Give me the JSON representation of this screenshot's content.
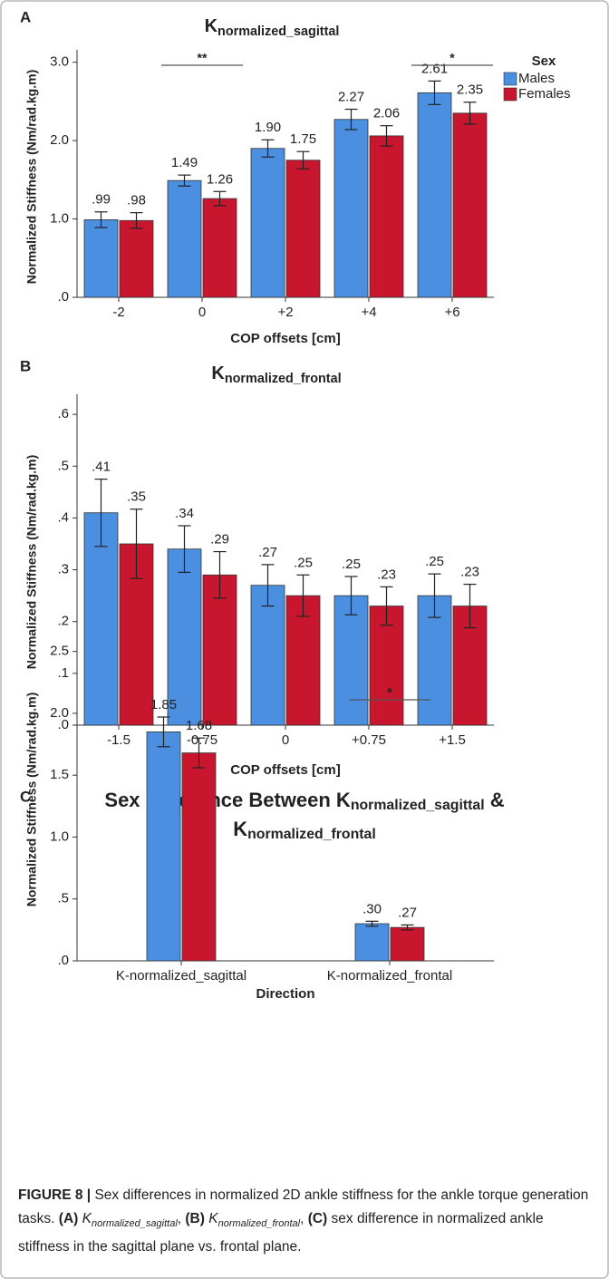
{
  "chart_data": [
    {
      "type": "bar",
      "panel": "A",
      "title": [
        [
          "K",
          "normalized_sagittal"
        ]
      ],
      "ylabel": "Normalized Stiffness (Nm/rad.kg.m)",
      "xlabel": "COP offsets [cm]",
      "categories": [
        "-2",
        "0",
        "+2",
        "+4",
        "+6"
      ],
      "series": [
        {
          "name": "Males",
          "color": "#4a8fe0",
          "values": [
            0.99,
            1.49,
            1.9,
            2.27,
            2.61
          ],
          "value_labels": [
            ".99",
            "1.49",
            "1.90",
            "2.27",
            "2.61"
          ],
          "errors": [
            0.1,
            0.07,
            0.11,
            0.13,
            0.15
          ]
        },
        {
          "name": "Females",
          "color": "#c8162e",
          "values": [
            0.98,
            1.26,
            1.75,
            2.06,
            2.35
          ],
          "value_labels": [
            ".98",
            "1.26",
            "1.75",
            "2.06",
            "2.35"
          ],
          "errors": [
            0.1,
            0.09,
            0.11,
            0.13,
            0.14
          ]
        }
      ],
      "ylim": [
        0,
        3.1
      ],
      "yticks": [
        {
          "value": 0,
          "label": ".0"
        },
        {
          "value": 1,
          "label": "1.0"
        },
        {
          "value": 2,
          "label": "2.0"
        },
        {
          "value": 3,
          "label": "3.0"
        }
      ],
      "legend_title": "Sex",
      "annotations": [
        {
          "text": "**",
          "category": "0"
        },
        {
          "text": "*",
          "category": "+6"
        }
      ]
    },
    {
      "type": "bar",
      "panel": "B",
      "title": [
        [
          "K",
          "normalized_frontal"
        ]
      ],
      "ylabel": "Normalized Stiffness (Nm/rad.kg.m)",
      "xlabel": "COP offsets [cm]",
      "categories": [
        "-1.5",
        "-0.75",
        "0",
        "+0.75",
        "+1.5"
      ],
      "series": [
        {
          "name": "Males",
          "color": "#4a8fe0",
          "values": [
            0.41,
            0.34,
            0.27,
            0.25,
            0.25
          ],
          "value_labels": [
            ".41",
            ".34",
            ".27",
            ".25",
            ".25"
          ],
          "errors": [
            0.065,
            0.045,
            0.04,
            0.037,
            0.042
          ]
        },
        {
          "name": "Females",
          "color": "#c8162e",
          "values": [
            0.35,
            0.29,
            0.25,
            0.23,
            0.23
          ],
          "value_labels": [
            ".35",
            ".29",
            ".25",
            ".23",
            ".23"
          ],
          "errors": [
            0.067,
            0.045,
            0.04,
            0.037,
            0.042
          ]
        }
      ],
      "ylim": [
        0,
        0.63
      ],
      "yticks": [
        {
          "value": 0,
          "label": ".0"
        },
        {
          "value": 0.1,
          "label": ".1"
        },
        {
          "value": 0.2,
          "label": ".2"
        },
        {
          "value": 0.3,
          "label": ".3"
        },
        {
          "value": 0.4,
          "label": ".4"
        },
        {
          "value": 0.5,
          "label": ".5"
        },
        {
          "value": 0.6,
          "label": ".6"
        }
      ]
    },
    {
      "type": "bar",
      "panel": "C",
      "title": [
        [
          "Sex Difference Between K",
          "normalized_sagittal",
          " &"
        ],
        [
          "K",
          "normalized_frontal"
        ]
      ],
      "ylabel": "Normalized Stiffness (Nm/rad.kg.m)",
      "xlabel": "Direction",
      "categories": [
        "K-normalized_sagittal",
        "K-normalized_frontal"
      ],
      "series": [
        {
          "name": "Males",
          "color": "#4a8fe0",
          "values": [
            1.85,
            0.3
          ],
          "value_labels": [
            "1.85",
            ".30"
          ],
          "errors": [
            0.12,
            0.02
          ]
        },
        {
          "name": "Females",
          "color": "#c8162e",
          "values": [
            1.68,
            0.27
          ],
          "value_labels": [
            "1.68",
            ".27"
          ],
          "errors": [
            0.12,
            0.02
          ]
        }
      ],
      "ylim": [
        0,
        2.6
      ],
      "yticks": [
        {
          "value": 0,
          "label": ".0"
        },
        {
          "value": 0.5,
          "label": ".5"
        },
        {
          "value": 1,
          "label": "1.0"
        },
        {
          "value": 1.5,
          "label": "1.5"
        },
        {
          "value": 2,
          "label": "2.0"
        },
        {
          "value": 2.5,
          "label": "2.5"
        }
      ],
      "annotations": [
        {
          "text": "*",
          "category": "K-normalized_frontal"
        }
      ]
    }
  ],
  "caption": [
    {
      "b": "FIGURE 8 |"
    },
    {
      "t": " Sex differences in normalized 2D ankle stiffness for the ankle torque generation tasks. "
    },
    {
      "b": "(A)"
    },
    {
      "i": " K"
    },
    {
      "s": "normalized_sagittal"
    },
    {
      "t": ", "
    },
    {
      "b": "(B)"
    },
    {
      "i": " K"
    },
    {
      "s": "normalized_frontal"
    },
    {
      "t": ", "
    },
    {
      "b": "(C)"
    },
    {
      "t": " sex difference in normalized ankle stiffness in the sagittal plane vs. frontal plane."
    }
  ]
}
